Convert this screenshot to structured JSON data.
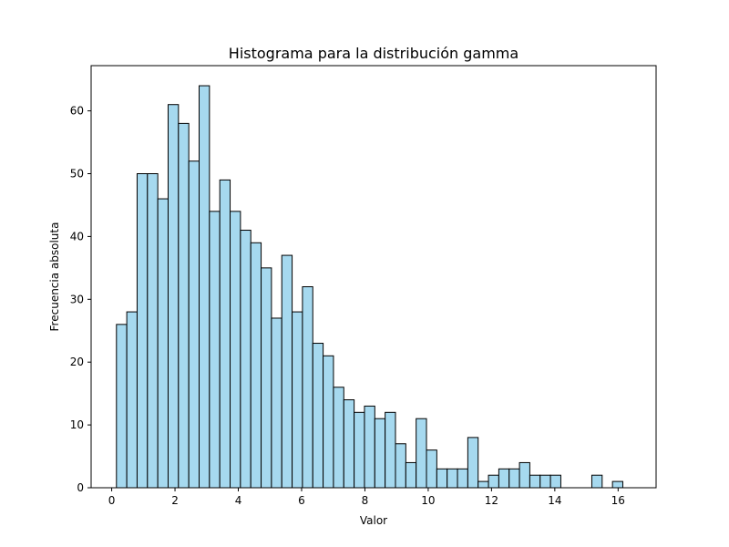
{
  "chart_data": {
    "type": "bar",
    "title": "Histograma para la distribución gamma",
    "xlabel": "Valor",
    "ylabel": "Frecuencia absoluta",
    "xlim": [
      -0.65,
      17.2
    ],
    "ylim": [
      0,
      67.2
    ],
    "xticks": [
      0,
      2,
      4,
      6,
      8,
      10,
      12,
      14,
      16
    ],
    "yticks": [
      0,
      10,
      20,
      30,
      40,
      50,
      60
    ],
    "bin_start": 0.15,
    "bin_width": 0.3265,
    "values": [
      26,
      28,
      50,
      50,
      46,
      61,
      58,
      52,
      64,
      44,
      49,
      44,
      41,
      39,
      35,
      27,
      37,
      28,
      32,
      23,
      21,
      16,
      14,
      12,
      13,
      11,
      12,
      7,
      4,
      11,
      6,
      3,
      3,
      3,
      8,
      1,
      2,
      3,
      3,
      4,
      2,
      2,
      2,
      0,
      0,
      0,
      2,
      0,
      1
    ],
    "bar_color": "#a6d9ef",
    "edge_color": "#000000",
    "grid": false,
    "legend": "none"
  }
}
